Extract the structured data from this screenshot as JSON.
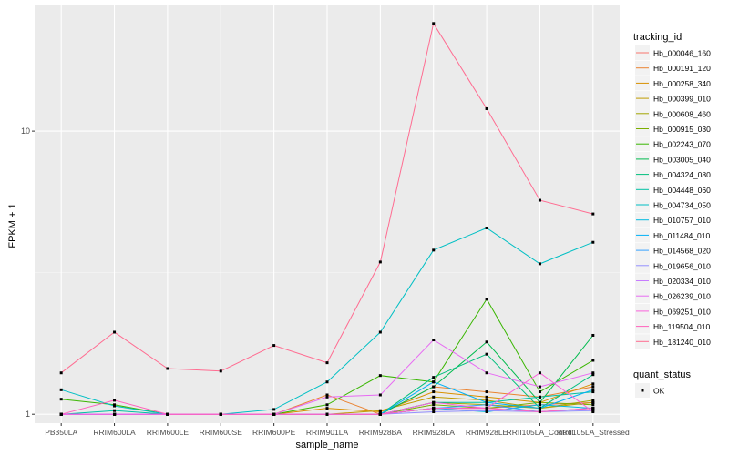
{
  "chart_data": {
    "type": "line",
    "title": "",
    "xlabel": "sample_name",
    "ylabel": "FPKM + 1",
    "yscale": "log10",
    "ylim": [
      0.93,
      28
    ],
    "grid": true,
    "y_ticks": [
      1,
      10
    ],
    "y_tick_labels": [
      "1",
      "10"
    ],
    "categories": [
      "PB350LA",
      "RRIM600LA",
      "RRIM600LE",
      "RRIM600SE",
      "RRIM600PE",
      "RRIM901LA",
      "RRIM928BA",
      "RRIM928LA",
      "RRIM928LE",
      "RRII105LA_Control",
      "RRII105LA_Stressed"
    ],
    "legend": {
      "title": "tracking_id",
      "placement": "right",
      "entries": [
        "Hb_000046_160",
        "Hb_000191_120",
        "Hb_000258_340",
        "Hb_000399_010",
        "Hb_000608_460",
        "Hb_000915_030",
        "Hb_002243_070",
        "Hb_003005_040",
        "Hb_004324_080",
        "Hb_004448_060",
        "Hb_004734_050",
        "Hb_010757_010",
        "Hb_011484_010",
        "Hb_014568_020",
        "Hb_019656_010",
        "Hb_020334_010",
        "Hb_026239_010",
        "Hb_069251_010",
        "Hb_119504_010",
        "Hb_181240_010"
      ]
    },
    "legend2": {
      "title": "quant_status",
      "entries": [
        "OK"
      ]
    },
    "colors": [
      "#F8766D",
      "#EA8331",
      "#D89000",
      "#C09B00",
      "#A3A500",
      "#7CAE00",
      "#39B600",
      "#00BB4E",
      "#00BF7D",
      "#00C1A3",
      "#00BFC4",
      "#00BAE0",
      "#00B0F6",
      "#35A2FF",
      "#9590FF",
      "#C77CFF",
      "#E76BF3",
      "#FA62DB",
      "#FF62BC",
      "#FF6C91"
    ],
    "series": [
      {
        "name": "Hb_000046_160",
        "values": [
          1.0,
          1.0,
          1.0,
          1.0,
          1.0,
          1.0,
          1.0,
          1.05,
          1.05,
          1.08,
          1.1
        ]
      },
      {
        "name": "Hb_000191_120",
        "values": [
          1.0,
          1.0,
          1.0,
          1.0,
          1.0,
          1.17,
          1.0,
          1.25,
          1.2,
          1.15,
          1.25
        ]
      },
      {
        "name": "Hb_000258_340",
        "values": [
          1.0,
          1.0,
          1.0,
          1.0,
          1.0,
          1.05,
          1.02,
          1.2,
          1.15,
          1.1,
          1.28
        ]
      },
      {
        "name": "Hb_000399_010",
        "values": [
          1.0,
          1.0,
          1.0,
          1.0,
          1.0,
          1.0,
          1.03,
          1.15,
          1.12,
          1.05,
          1.1
        ]
      },
      {
        "name": "Hb_000608_460",
        "values": [
          1.0,
          1.0,
          1.0,
          1.0,
          1.0,
          1.0,
          1.0,
          1.1,
          1.08,
          1.05,
          1.12
        ]
      },
      {
        "name": "Hb_000915_030",
        "values": [
          1.0,
          1.0,
          1.0,
          1.0,
          1.0,
          1.0,
          1.0,
          1.08,
          1.05,
          1.1,
          1.08
        ]
      },
      {
        "name": "Hb_002243_070",
        "values": [
          1.13,
          1.08,
          1.0,
          1.0,
          1.0,
          1.08,
          1.37,
          1.3,
          2.55,
          1.2,
          1.55
        ]
      },
      {
        "name": "Hb_003005_040",
        "values": [
          1.0,
          1.0,
          1.0,
          1.0,
          1.0,
          1.0,
          1.0,
          1.25,
          1.8,
          1.1,
          1.9
        ]
      },
      {
        "name": "Hb_004324_080",
        "values": [
          1.0,
          1.0,
          1.0,
          1.0,
          1.0,
          1.0,
          1.0,
          1.35,
          1.63,
          1.05,
          1.38
        ]
      },
      {
        "name": "Hb_004448_060",
        "values": [
          1.0,
          1.03,
          1.0,
          1.0,
          1.0,
          1.0,
          1.0,
          1.1,
          1.1,
          1.15,
          1.2
        ]
      },
      {
        "name": "Hb_004734_050",
        "values": [
          1.22,
          1.07,
          1.0,
          1.0,
          1.04,
          1.3,
          1.95,
          3.8,
          4.55,
          3.4,
          4.05
        ]
      },
      {
        "name": "Hb_010757_010",
        "values": [
          1.0,
          1.0,
          1.0,
          1.0,
          1.0,
          1.0,
          1.0,
          1.05,
          1.02,
          1.08,
          1.05
        ]
      },
      {
        "name": "Hb_011484_010",
        "values": [
          1.0,
          1.0,
          1.0,
          1.0,
          1.0,
          1.0,
          1.0,
          1.3,
          1.1,
          1.05,
          1.22
        ]
      },
      {
        "name": "Hb_014568_020",
        "values": [
          1.0,
          1.0,
          1.0,
          1.0,
          1.0,
          1.0,
          1.0,
          1.05,
          1.08,
          1.02,
          1.05
        ]
      },
      {
        "name": "Hb_019656_010",
        "values": [
          1.0,
          1.0,
          1.0,
          1.0,
          1.0,
          1.0,
          1.0,
          1.02,
          1.03,
          1.02,
          1.03
        ]
      },
      {
        "name": "Hb_020334_010",
        "values": [
          1.0,
          1.0,
          1.0,
          1.0,
          1.0,
          1.0,
          1.0,
          1.05,
          1.05,
          1.02,
          1.05
        ]
      },
      {
        "name": "Hb_026239_010",
        "values": [
          1.0,
          1.0,
          1.0,
          1.0,
          1.0,
          1.15,
          1.17,
          1.83,
          1.4,
          1.25,
          1.4
        ]
      },
      {
        "name": "Hb_069251_010",
        "values": [
          1.0,
          1.0,
          1.0,
          1.0,
          1.0,
          1.0,
          1.0,
          1.1,
          1.05,
          1.4,
          1.02
        ]
      },
      {
        "name": "Hb_119504_010",
        "values": [
          1.0,
          1.12,
          1.0,
          1.0,
          1.0,
          1.0,
          1.0,
          1.05,
          1.05,
          1.02,
          1.05
        ]
      },
      {
        "name": "Hb_181240_010",
        "values": [
          1.4,
          1.95,
          1.45,
          1.42,
          1.75,
          1.52,
          3.45,
          24.0,
          12.0,
          5.7,
          5.1
        ]
      }
    ]
  }
}
